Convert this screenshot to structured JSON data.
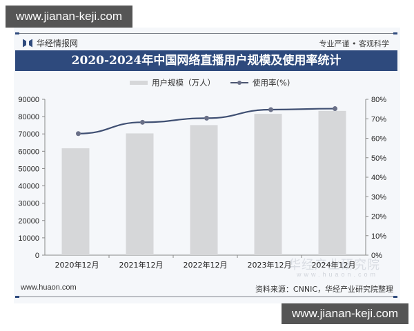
{
  "watermarks": {
    "top": "www.jianan-keji.com",
    "bottom": "www.jianan-keji.com"
  },
  "header": {
    "brand": "华经情报网",
    "brand_icon": "bookmark-logo-icon",
    "slogan": "专业严谨 • 客观科学",
    "title": "2020-2024年中国网络直播用户规模及使用率统计"
  },
  "legend": {
    "bar_label": "用户规模（万人）",
    "line_label": "使用率(%)"
  },
  "footer": {
    "website": "www.huaon.com",
    "source": "资料来源：CNNIC，华经产业研究院整理",
    "background_watermark": "华经产业研究院",
    "background_watermark_url": "www.huaon.com"
  },
  "colors": {
    "title_bar": "#2e4a7d",
    "bar": "#d6d7d9",
    "line": "#3f4f72",
    "marker": "#6a7088"
  },
  "chart_data": {
    "type": "bar+line",
    "title": "2020-2024年中国网络直播用户规模及使用率统计",
    "categories": [
      "2020年12月",
      "2021年12月",
      "2022年12月",
      "2023年12月",
      "2024年12月"
    ],
    "series": [
      {
        "name": "用户规模（万人）",
        "type": "bar",
        "axis": "left",
        "values": [
          61700,
          70300,
          75100,
          81600,
          83300
        ]
      },
      {
        "name": "使用率(%)",
        "type": "line",
        "axis": "right",
        "values": [
          62.4,
          68.2,
          70.3,
          74.7,
          75.2
        ]
      }
    ],
    "left_axis": {
      "ylim": [
        0,
        90000
      ],
      "ticks": [
        "0",
        "10000",
        "20000",
        "30000",
        "40000",
        "50000",
        "60000",
        "70000",
        "80000",
        "90000"
      ]
    },
    "right_axis": {
      "ylim": [
        0,
        80
      ],
      "ticks": [
        "0%",
        "10%",
        "20%",
        "30%",
        "40%",
        "50%",
        "60%",
        "70%",
        "80%"
      ]
    },
    "xlabel": "",
    "ylabel": "",
    "grid": false,
    "legend_position": "top"
  }
}
